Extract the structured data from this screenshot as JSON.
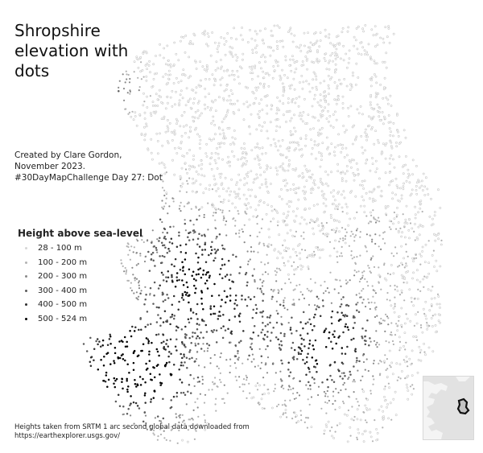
{
  "title_lines": [
    "Shropshire",
    "elevation with",
    "dots"
  ],
  "credit_lines": [
    "Created by Clare Gordon,",
    "November 2023.",
    "#30DayMapChallenge Day 27: Dot"
  ],
  "legend": {
    "title": "Height above sea-level",
    "items": [
      {
        "label": "28 - 100 m",
        "color": "#d6d6d6"
      },
      {
        "label": "100 - 200 m",
        "color": "#b3b3b3"
      },
      {
        "label": "200 - 300 m",
        "color": "#8a8a8a"
      },
      {
        "label": "300 - 400 m",
        "color": "#5c5c5c"
      },
      {
        "label": "400 - 500 m",
        "color": "#2e2e2e"
      },
      {
        "label": "500 - 524 m",
        "color": "#000000"
      }
    ]
  },
  "source_lines": [
    "Heights taken from SRTM 1 arc second global data downloaded from",
    "https://earthexplorer.usgs.gov/"
  ],
  "colors": {
    "background": "#ffffff",
    "inset_land": "#e2e2e2",
    "inset_highlight": "#111111"
  }
}
